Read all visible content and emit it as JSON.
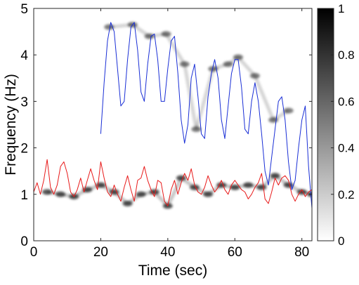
{
  "chart_data": {
    "type": "heatmap",
    "xlabel": "Time (sec)",
    "ylabel": "Frequency (Hz)",
    "xlim": [
      0,
      83
    ],
    "ylim": [
      0,
      5
    ],
    "x_ticks": [
      0,
      20,
      40,
      60,
      80
    ],
    "y_ticks": [
      0,
      1,
      2,
      3,
      4,
      5
    ],
    "grid": false,
    "colormap": "gray (white = 0, black = 1)",
    "colorbar": {
      "range": [
        0,
        1
      ],
      "ticks": [
        0,
        0.2,
        0.4,
        0.6,
        0.8,
        1
      ],
      "position": "right"
    },
    "heatmap_ridges": [
      {
        "x": [
          4,
          8,
          12,
          16,
          20,
          24,
          28,
          32,
          36,
          40,
          44,
          48,
          52,
          56,
          60,
          64,
          68,
          72,
          76,
          80,
          83
        ],
        "y": [
          1.05,
          1.0,
          0.95,
          1.1,
          1.2,
          1.05,
          0.8,
          1.0,
          1.05,
          0.75,
          1.35,
          1.15,
          1.0,
          1.2,
          1.15,
          1.2,
          1.15,
          1.4,
          1.2,
          1.05,
          1.0
        ],
        "intensity": 0.65
      },
      {
        "x": [
          22.5,
          29.5,
          34.5,
          39.5,
          45,
          48.5,
          53.5,
          58,
          61,
          66,
          71.5,
          76
        ],
        "y": [
          4.6,
          4.65,
          4.4,
          4.45,
          3.8,
          2.4,
          3.7,
          3.8,
          3.95,
          3.55,
          2.6,
          2.8
        ],
        "intensity": 0.5
      }
    ],
    "series": [
      {
        "color": "#1a2fd6",
        "x": [
          20,
          21,
          22,
          23,
          24,
          25,
          26,
          27,
          28,
          29,
          30,
          31,
          32,
          33,
          34,
          35,
          36,
          37,
          38,
          39,
          40,
          41,
          42,
          43,
          44,
          45,
          46,
          47,
          48,
          49,
          50,
          51,
          52,
          53,
          54,
          55,
          56,
          57,
          58,
          59,
          60,
          61,
          62,
          63,
          64,
          65,
          66,
          67,
          68,
          69,
          70,
          71,
          72,
          73,
          74,
          75,
          76,
          77,
          78,
          79,
          80,
          81,
          82,
          83
        ],
        "y": [
          2.3,
          3.4,
          4.3,
          4.7,
          4.5,
          3.7,
          2.9,
          3.0,
          3.9,
          4.6,
          4.7,
          4.1,
          3.2,
          3.0,
          3.8,
          4.4,
          4.45,
          3.9,
          3.0,
          3.0,
          3.7,
          4.3,
          4.4,
          3.6,
          2.6,
          2.1,
          2.5,
          3.5,
          3.8,
          3.1,
          2.3,
          2.2,
          3.1,
          3.6,
          3.9,
          3.5,
          2.6,
          2.2,
          2.9,
          3.6,
          3.9,
          3.9,
          3.3,
          2.4,
          2.3,
          3.0,
          3.4,
          3.0,
          2.3,
          1.5,
          1.2,
          1.8,
          2.4,
          3.0,
          3.1,
          2.6,
          1.7,
          1.1,
          1.3,
          2.0,
          2.6,
          2.9,
          1.6,
          0.7
        ]
      },
      {
        "color": "#e81a1a",
        "x": [
          0,
          1,
          2,
          3,
          4,
          5,
          6,
          7,
          8,
          9,
          10,
          11,
          12,
          13,
          14,
          15,
          16,
          17,
          18,
          19,
          20,
          21,
          22,
          23,
          24,
          25,
          26,
          27,
          28,
          29,
          30,
          31,
          32,
          33,
          34,
          35,
          36,
          37,
          38,
          39,
          40,
          41,
          42,
          43,
          44,
          45,
          46,
          47,
          48,
          49,
          50,
          51,
          52,
          53,
          54,
          55,
          56,
          57,
          58,
          59,
          60,
          61,
          62,
          63,
          64,
          65,
          66,
          67,
          68,
          69,
          70,
          71,
          72,
          73,
          74,
          75,
          76,
          77,
          78,
          79,
          80,
          81,
          82,
          83
        ],
        "y": [
          1.05,
          1.25,
          1.0,
          1.3,
          1.75,
          1.15,
          1.0,
          1.2,
          1.6,
          1.7,
          1.45,
          1.05,
          0.95,
          1.1,
          1.35,
          1.05,
          1.3,
          1.55,
          1.3,
          1.1,
          1.7,
          1.35,
          1.05,
          0.95,
          1.2,
          1.0,
          0.85,
          1.15,
          1.4,
          1.1,
          0.85,
          1.3,
          1.35,
          1.6,
          1.3,
          1.1,
          0.95,
          1.3,
          1.25,
          0.85,
          0.75,
          1.1,
          1.3,
          1.0,
          1.25,
          1.45,
          1.3,
          1.55,
          1.2,
          1.05,
          1.0,
          1.15,
          1.4,
          1.2,
          1.05,
          1.15,
          1.3,
          1.1,
          1.0,
          1.2,
          1.3,
          1.2,
          1.1,
          1.05,
          0.9,
          1.0,
          1.15,
          1.25,
          1.45,
          0.9,
          0.8,
          1.05,
          1.35,
          1.2,
          1.35,
          1.4,
          1.3,
          1.0,
          0.85,
          1.0,
          1.1,
          0.95,
          1.05,
          1.1
        ]
      }
    ]
  }
}
